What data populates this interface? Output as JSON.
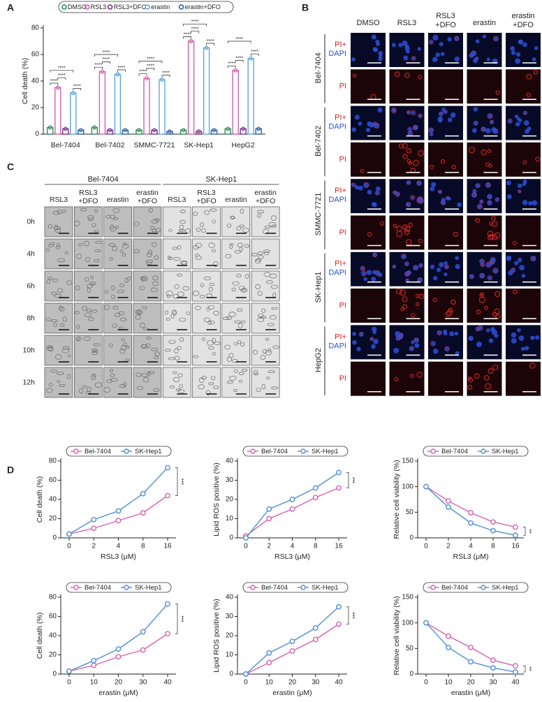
{
  "panel_labels": [
    "A",
    "B",
    "C",
    "D"
  ],
  "chart_data": [
    {
      "type": "bar",
      "ylabel": "Cell death (%)",
      "categories": [
        "Bel-7404",
        "Bel-7402",
        "SMMC-7721",
        "SK-Hep1",
        "HepG2"
      ],
      "series": [
        {
          "name": "DMSO",
          "color": "#2a8c5a",
          "values": [
            5,
            5,
            3,
            3,
            4
          ]
        },
        {
          "name": "RSL3",
          "color": "#d25fb0",
          "values": [
            35,
            47,
            42,
            70,
            48
          ]
        },
        {
          "name": "RSL3+DFO",
          "color": "#7a2f8e",
          "values": [
            4,
            3,
            3,
            2,
            4
          ]
        },
        {
          "name": "erastin",
          "color": "#5aa7e0",
          "values": [
            31,
            45,
            41,
            65,
            57
          ]
        },
        {
          "name": "erastin+DFO",
          "color": "#2d5fa8",
          "values": [
            3,
            3,
            2,
            3,
            4
          ]
        }
      ],
      "ylim": [
        0,
        80
      ],
      "yticks": [
        0,
        20,
        40,
        60,
        80
      ],
      "significance": [
        [
          "****",
          "****",
          "****",
          "****"
        ],
        [
          "****",
          "****",
          "****",
          "****"
        ],
        [
          "****",
          "****",
          "****",
          "****"
        ],
        [
          "****",
          "****",
          "****",
          "****"
        ],
        [
          "****",
          "****",
          "****",
          "****"
        ]
      ]
    },
    {
      "type": "line",
      "ylabel": "Cell death (%)",
      "xlabel": "RSL3 (μM)",
      "categories": [
        "0",
        "2",
        "4",
        "8",
        "16"
      ],
      "series": [
        {
          "name": "Bel-7404",
          "color": "#d660b0",
          "values": [
            4,
            10,
            18,
            26,
            44
          ]
        },
        {
          "name": "SK-Hep1",
          "color": "#4d8fd6",
          "values": [
            4,
            19,
            28,
            46,
            73
          ]
        }
      ],
      "ylim": [
        0,
        80
      ],
      "yticks": [
        0,
        20,
        40,
        60,
        80
      ],
      "annotation": "***"
    },
    {
      "type": "line",
      "ylabel": "Lipid ROS positive (%)",
      "xlabel": "RSL3 (μM)",
      "categories": [
        "0",
        "2",
        "4",
        "8",
        "16"
      ],
      "series": [
        {
          "name": "Bel-7404",
          "color": "#d660b0",
          "values": [
            1,
            10,
            15,
            21,
            26
          ]
        },
        {
          "name": "SK-Hep1",
          "color": "#4d8fd6",
          "values": [
            0,
            15,
            20,
            26,
            34
          ]
        }
      ],
      "ylim": [
        0,
        40
      ],
      "yticks": [
        0,
        10,
        20,
        30,
        40
      ],
      "annotation": "***"
    },
    {
      "type": "line",
      "ylabel": "Relative cell viability (%)",
      "xlabel": "RSL3 (μM)",
      "categories": [
        "0",
        "2",
        "4",
        "8",
        "16"
      ],
      "series": [
        {
          "name": "Bel-7404",
          "color": "#d660b0",
          "values": [
            100,
            72,
            49,
            31,
            21
          ]
        },
        {
          "name": "SK-Hep1",
          "color": "#4d8fd6",
          "values": [
            100,
            60,
            29,
            14,
            5
          ]
        }
      ],
      "ylim": [
        0,
        150
      ],
      "yticks": [
        0,
        50,
        100,
        150
      ],
      "annotation": "**"
    },
    {
      "type": "line",
      "ylabel": "Cell death (%)",
      "xlabel": "erastin (μM)",
      "categories": [
        "0",
        "10",
        "20",
        "30",
        "40"
      ],
      "series": [
        {
          "name": "Bel-7404",
          "color": "#d660b0",
          "values": [
            3,
            9,
            18,
            25,
            42
          ]
        },
        {
          "name": "SK-Hep1",
          "color": "#4d8fd6",
          "values": [
            3,
            14,
            26,
            44,
            73
          ]
        }
      ],
      "ylim": [
        0,
        80
      ],
      "yticks": [
        0,
        20,
        40,
        60,
        80
      ],
      "annotation": "***"
    },
    {
      "type": "line",
      "ylabel": "Lipid ROS positive (%)",
      "xlabel": "erastin (μM)",
      "categories": [
        "0",
        "10",
        "20",
        "30",
        "40"
      ],
      "series": [
        {
          "name": "Bel-7404",
          "color": "#d660b0",
          "values": [
            0,
            6,
            12,
            18,
            26
          ]
        },
        {
          "name": "SK-Hep1",
          "color": "#4d8fd6",
          "values": [
            0,
            11,
            17,
            24,
            35
          ]
        }
      ],
      "ylim": [
        0,
        40
      ],
      "yticks": [
        0,
        10,
        20,
        30,
        40
      ],
      "annotation": "***"
    },
    {
      "type": "line",
      "ylabel": "Relative cell viability (%)",
      "xlabel": "erastin (μM)",
      "categories": [
        "0",
        "10",
        "20",
        "30",
        "40"
      ],
      "series": [
        {
          "name": "Bel-7404",
          "color": "#d660b0",
          "values": [
            100,
            74,
            52,
            27,
            16
          ]
        },
        {
          "name": "SK-Hep1",
          "color": "#4d8fd6",
          "values": [
            100,
            52,
            24,
            12,
            4
          ]
        }
      ],
      "ylim": [
        0,
        150
      ],
      "yticks": [
        0,
        50,
        100,
        150
      ],
      "annotation": "**"
    }
  ],
  "panel_b": {
    "columns": [
      [
        "DMSO"
      ],
      [
        "RSL3"
      ],
      [
        "RSL3",
        "+DFO"
      ],
      [
        "erastin"
      ],
      [
        "erastin",
        "+DFO"
      ]
    ],
    "rows": [
      {
        "cell_line": "Bel-7404",
        "merged": [
          "PI+",
          "DAPI"
        ],
        "single": "PI"
      },
      {
        "cell_line": "Bel-7402",
        "merged": [
          "PI+",
          "DAPI"
        ],
        "single": "PI"
      },
      {
        "cell_line": "SMMC-7721",
        "merged": [
          "PI+",
          "DAPI"
        ],
        "single": "PI"
      },
      {
        "cell_line": "SK-Hep1",
        "merged": [
          "PI+",
          "DAPI"
        ],
        "single": "PI"
      },
      {
        "cell_line": "HepG2",
        "merged": [
          "PI+",
          "DAPI"
        ],
        "single": "PI"
      }
    ]
  },
  "panel_c": {
    "groups": [
      {
        "name": "Bel-7404",
        "columns": [
          [
            "RSL3"
          ],
          [
            "RSL3",
            "+DFO"
          ],
          [
            "erastin"
          ],
          [
            "erastin",
            "+DFO"
          ]
        ]
      },
      {
        "name": "SK-Hep1",
        "columns": [
          [
            "RSL3"
          ],
          [
            "RSL3",
            "+DFO"
          ],
          [
            "erastin"
          ],
          [
            "erastin",
            "+DFO"
          ]
        ]
      }
    ],
    "times": [
      "0h",
      "4h",
      "6h",
      "8h",
      "10h",
      "12h"
    ]
  }
}
